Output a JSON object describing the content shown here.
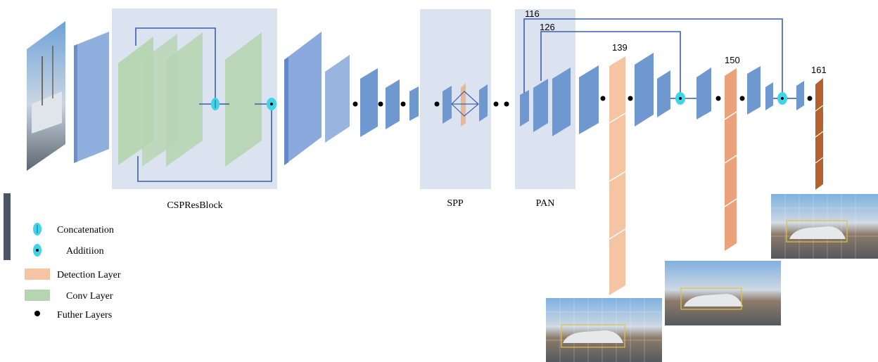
{
  "blocks": {
    "csp": "CSPResBlock",
    "spp": "SPP",
    "pan": "PAN"
  },
  "layer_numbers": {
    "n116": "116",
    "n126": "126",
    "n139": "139",
    "n150": "150",
    "n161": "161"
  },
  "legend": [
    {
      "label": "Concatenation",
      "symbol": "concatenation-icon"
    },
    {
      "label": "Additiion",
      "symbol": "addition-icon"
    },
    {
      "label": "Detection Layer",
      "symbol": "detection-layer-swatch"
    },
    {
      "label": "Conv Layer",
      "symbol": "conv-layer-swatch"
    },
    {
      "label": "Futher Layers",
      "symbol": "further-layers-dot"
    }
  ],
  "colors": {
    "block_bg": "#dbe3f1",
    "blue_layer": "#7fa3d6",
    "blue_layer_dark": "#5b84c4",
    "green_layer": "#b5d5b0",
    "detection_light": "#f5c4a3",
    "detection_dark": "#b5612b",
    "connector": "#3a5fb0",
    "concat_marker": "#3fd4e8"
  }
}
